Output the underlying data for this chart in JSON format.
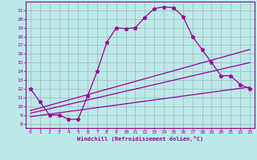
{
  "xlabel": "Windchill (Refroidissement éolien,°C)",
  "background_color": "#bde8e8",
  "line_color": "#990099",
  "grid_color": "#99bbbb",
  "xlim": [
    -0.5,
    23.5
  ],
  "ylim": [
    7.5,
    22
  ],
  "xticks": [
    0,
    1,
    2,
    3,
    4,
    5,
    6,
    7,
    8,
    9,
    10,
    11,
    12,
    13,
    14,
    15,
    16,
    17,
    18,
    19,
    20,
    21,
    22,
    23
  ],
  "yticks": [
    8,
    9,
    10,
    11,
    12,
    13,
    14,
    15,
    16,
    17,
    18,
    19,
    20,
    21
  ],
  "line1_x": [
    0,
    1,
    2,
    3,
    4,
    5,
    6,
    7,
    8,
    9,
    10,
    11,
    12,
    13,
    14,
    15,
    16,
    17,
    18,
    19,
    20,
    21,
    22,
    23
  ],
  "line1_y": [
    12,
    10.5,
    9,
    9,
    8.5,
    8.5,
    11.2,
    14,
    17.3,
    19,
    18.9,
    19,
    20.2,
    21.2,
    21.4,
    21.3,
    20.3,
    18.0,
    16.5,
    15.0,
    13.5,
    13.5,
    12.5,
    12.0
  ],
  "line2_x": [
    0,
    23
  ],
  "line2_y": [
    9.5,
    16.5
  ],
  "line3_x": [
    0,
    23
  ],
  "line3_y": [
    9.2,
    15.0
  ],
  "line4_x": [
    0,
    23
  ],
  "line4_y": [
    8.8,
    12.2
  ]
}
